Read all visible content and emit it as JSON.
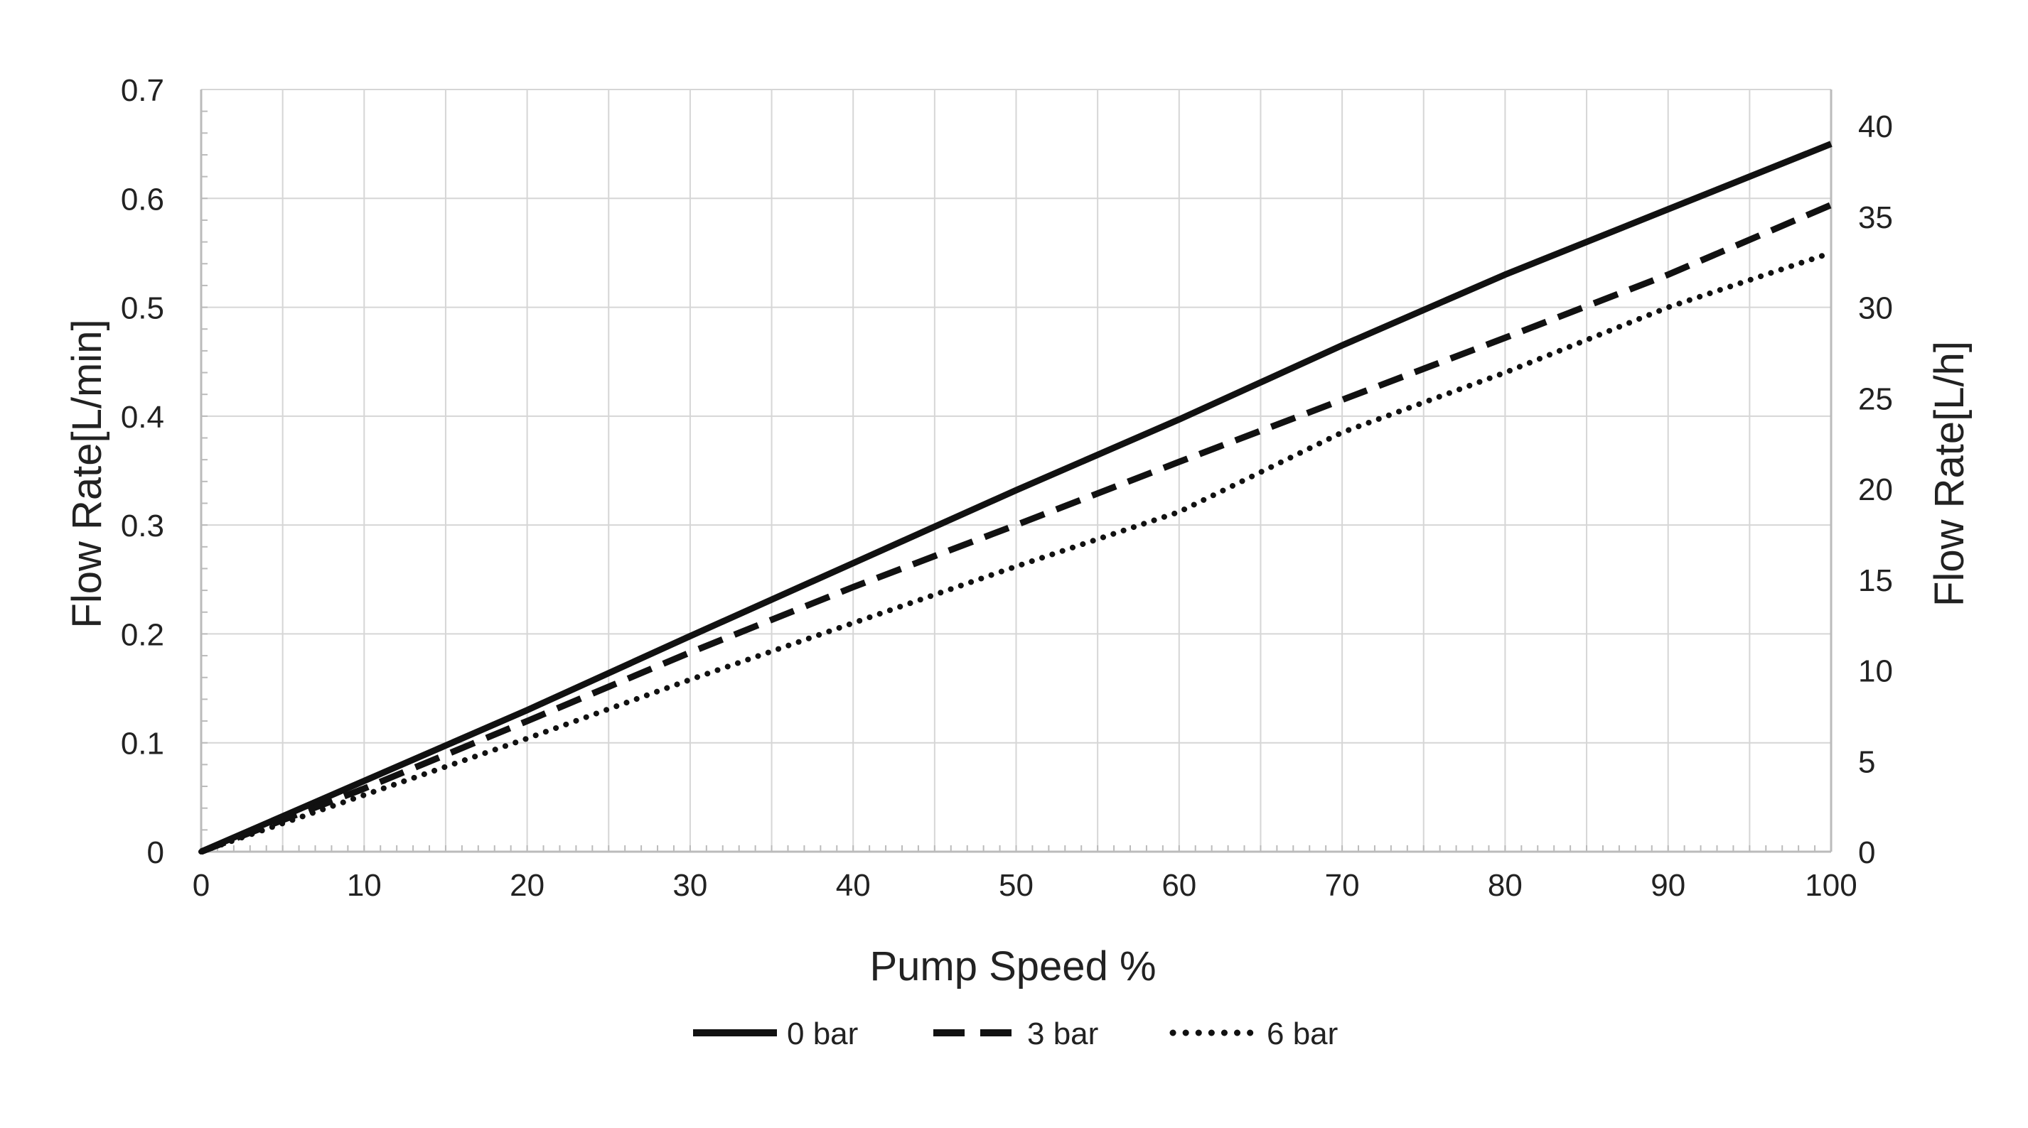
{
  "chart_data": {
    "type": "line",
    "title": "",
    "xlabel": "Pump Speed %",
    "ylabel": "Flow Rate[L/min]",
    "y2label": "Flow Rate[L/h]",
    "xlim": [
      0,
      100
    ],
    "ylim": [
      0,
      0.7
    ],
    "y2lim": [
      0,
      42
    ],
    "x_ticks": [
      "0",
      "10",
      "20",
      "30",
      "40",
      "50",
      "60",
      "70",
      "80",
      "90",
      "100"
    ],
    "y_ticks": [
      "0",
      "0.1",
      "0.2",
      "0.3",
      "0.4",
      "0.5",
      "0.6",
      "0.7"
    ],
    "y2_ticks": [
      "0",
      "5",
      "10",
      "15",
      "20",
      "25",
      "30",
      "35",
      "40"
    ],
    "grid": true,
    "legend_position": "bottom-center",
    "x": [
      0,
      10,
      20,
      30,
      40,
      50,
      60,
      70,
      80,
      90,
      100
    ],
    "series": [
      {
        "name": "0 bar",
        "style": "solid",
        "values": [
          0,
          0.065,
          0.13,
          0.198,
          0.265,
          0.332,
          0.397,
          0.465,
          0.53,
          0.59,
          0.65
        ]
      },
      {
        "name": "3 bar",
        "style": "dashed",
        "values": [
          0,
          0.058,
          0.12,
          0.183,
          0.243,
          0.3,
          0.358,
          0.415,
          0.472,
          0.53,
          0.594
        ]
      },
      {
        "name": "6 bar",
        "style": "dotted",
        "values": [
          0,
          0.052,
          0.104,
          0.158,
          0.21,
          0.262,
          0.312,
          0.385,
          0.44,
          0.5,
          0.55
        ]
      }
    ],
    "colors": {
      "line": "#111111",
      "grid": "#d6d6d6",
      "axis": "#bbbbbb",
      "text": "#222222"
    }
  }
}
